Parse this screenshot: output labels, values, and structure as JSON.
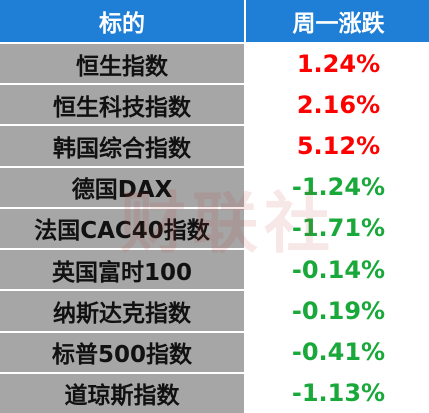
{
  "table": {
    "header": [
      "标的",
      "周一涨跌"
    ],
    "rows": [
      [
        "恒生指数",
        "1.24%"
      ],
      [
        "恒生科技指数",
        "2.16%"
      ],
      [
        "韩国综合指数",
        "5.12%"
      ],
      [
        "德国DAX",
        "-1.24%"
      ],
      [
        "法国CAC40指数",
        "-1.71%"
      ],
      [
        "英国富时100",
        "-0.14%"
      ],
      [
        "纳斯达克指数",
        "-0.19%"
      ],
      [
        "标普500指数",
        "-0.41%"
      ],
      [
        "道琼斯指数",
        "-1.13%"
      ]
    ],
    "up_color": "#ff0000",
    "down_color": "#19a83a"
  },
  "watermark": "财联社"
}
